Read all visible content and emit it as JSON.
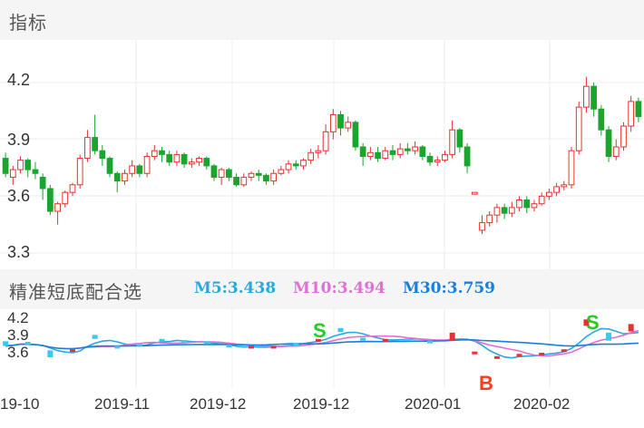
{
  "main_panel": {
    "title": "指标",
    "y_ticks": [
      "4.2",
      "3.9",
      "3.6",
      "3.3"
    ]
  },
  "indicator_panel": {
    "title": "精准短底配合选",
    "ma": [
      {
        "label": "M5:3.438",
        "color": "#2aa8e0"
      },
      {
        "label": "M10:3.494",
        "color": "#e06fd6"
      },
      {
        "label": "M30:3.759",
        "color": "#1a7fd9"
      }
    ],
    "y_ticks": [
      "4.2",
      "3.9",
      "3.6"
    ],
    "signals": [
      {
        "text": "S",
        "color": "#22cc22"
      },
      {
        "text": "B",
        "color": "#ff3b1f"
      },
      {
        "text": "S",
        "color": "#22cc22"
      }
    ]
  },
  "x_axis": [
    "19-10",
    "2019-11",
    "2019-12",
    "2019-12",
    "2020-01",
    "2020-02"
  ],
  "colors": {
    "up": "#e8312f",
    "down": "#1aa52e"
  },
  "chart_data": {
    "type": "candlestick",
    "y_range": [
      3.2,
      4.35
    ],
    "candles": [
      [
        3.8,
        3.72,
        3.83,
        3.7
      ],
      [
        3.7,
        3.74,
        3.76,
        3.66
      ],
      [
        3.74,
        3.79,
        3.81,
        3.72
      ],
      [
        3.79,
        3.74,
        3.8,
        3.7
      ],
      [
        3.74,
        3.72,
        3.78,
        3.69
      ],
      [
        3.7,
        3.64,
        3.72,
        3.58
      ],
      [
        3.64,
        3.52,
        3.66,
        3.5
      ],
      [
        3.52,
        3.56,
        3.57,
        3.45
      ],
      [
        3.56,
        3.62,
        3.63,
        3.54
      ],
      [
        3.62,
        3.66,
        3.67,
        3.6
      ],
      [
        3.66,
        3.8,
        3.82,
        3.64
      ],
      [
        3.8,
        3.91,
        3.95,
        3.78
      ],
      [
        3.91,
        3.84,
        4.03,
        3.82
      ],
      [
        3.84,
        3.8,
        3.87,
        3.76
      ],
      [
        3.8,
        3.72,
        3.81,
        3.7
      ],
      [
        3.72,
        3.68,
        3.73,
        3.62
      ],
      [
        3.68,
        3.72,
        3.74,
        3.66
      ],
      [
        3.72,
        3.76,
        3.79,
        3.7
      ],
      [
        3.76,
        3.72,
        3.77,
        3.7
      ],
      [
        3.72,
        3.81,
        3.83,
        3.7
      ],
      [
        3.81,
        3.84,
        3.87,
        3.79
      ],
      [
        3.84,
        3.82,
        3.86,
        3.78
      ],
      [
        3.82,
        3.78,
        3.84,
        3.76
      ],
      [
        3.78,
        3.82,
        3.84,
        3.76
      ],
      [
        3.82,
        3.77,
        3.83,
        3.75
      ],
      [
        3.77,
        3.78,
        3.8,
        3.75
      ],
      [
        3.78,
        3.8,
        3.81,
        3.76
      ],
      [
        3.8,
        3.76,
        3.81,
        3.74
      ],
      [
        3.76,
        3.7,
        3.77,
        3.68
      ],
      [
        3.7,
        3.74,
        3.75,
        3.66
      ],
      [
        3.74,
        3.7,
        3.75,
        3.68
      ],
      [
        3.7,
        3.66,
        3.72,
        3.65
      ],
      [
        3.66,
        3.7,
        3.72,
        3.65
      ],
      [
        3.7,
        3.72,
        3.73,
        3.68
      ],
      [
        3.72,
        3.71,
        3.74,
        3.68
      ],
      [
        3.71,
        3.68,
        3.72,
        3.66
      ],
      [
        3.68,
        3.72,
        3.74,
        3.66
      ],
      [
        3.72,
        3.74,
        3.76,
        3.71
      ],
      [
        3.74,
        3.77,
        3.79,
        3.72
      ],
      [
        3.77,
        3.76,
        3.79,
        3.74
      ],
      [
        3.76,
        3.79,
        3.8,
        3.74
      ],
      [
        3.79,
        3.83,
        3.85,
        3.77
      ],
      [
        3.83,
        3.84,
        3.87,
        3.8
      ],
      [
        3.84,
        3.94,
        3.98,
        3.82
      ],
      [
        3.94,
        4.03,
        4.06,
        3.9
      ],
      [
        4.03,
        3.96,
        4.05,
        3.92
      ],
      [
        3.96,
        3.99,
        4.02,
        3.94
      ],
      [
        3.99,
        3.86,
        4.0,
        3.84
      ],
      [
        3.86,
        3.81,
        3.88,
        3.76
      ],
      [
        3.81,
        3.83,
        3.86,
        3.79
      ],
      [
        3.83,
        3.8,
        3.86,
        3.78
      ],
      [
        3.8,
        3.84,
        3.86,
        3.79
      ],
      [
        3.84,
        3.82,
        3.87,
        3.79
      ],
      [
        3.82,
        3.85,
        3.88,
        3.8
      ],
      [
        3.85,
        3.84,
        3.88,
        3.82
      ],
      [
        3.84,
        3.86,
        3.89,
        3.82
      ],
      [
        3.86,
        3.81,
        3.87,
        3.79
      ],
      [
        3.81,
        3.78,
        3.83,
        3.76
      ],
      [
        3.78,
        3.79,
        3.81,
        3.76
      ],
      [
        3.79,
        3.82,
        3.84,
        3.78
      ],
      [
        3.82,
        3.95,
        4.0,
        3.8
      ],
      [
        3.95,
        3.86,
        3.96,
        3.83
      ],
      [
        3.86,
        3.76,
        3.88,
        3.72
      ],
      [
        3.62,
        3.62,
        3.62,
        3.62
      ],
      [
        3.42,
        3.46,
        3.5,
        3.4
      ],
      [
        3.46,
        3.5,
        3.52,
        3.44
      ],
      [
        3.5,
        3.54,
        3.56,
        3.46
      ],
      [
        3.54,
        3.51,
        3.56,
        3.48
      ],
      [
        3.51,
        3.54,
        3.57,
        3.49
      ],
      [
        3.54,
        3.58,
        3.6,
        3.52
      ],
      [
        3.58,
        3.54,
        3.6,
        3.51
      ],
      [
        3.54,
        3.56,
        3.58,
        3.52
      ],
      [
        3.56,
        3.6,
        3.62,
        3.55
      ],
      [
        3.6,
        3.62,
        3.64,
        3.58
      ],
      [
        3.62,
        3.65,
        3.67,
        3.6
      ],
      [
        3.65,
        3.66,
        3.68,
        3.63
      ],
      [
        3.66,
        3.84,
        3.86,
        3.64
      ],
      [
        3.84,
        4.07,
        4.1,
        3.82
      ],
      [
        4.07,
        4.18,
        4.23,
        4.04
      ],
      [
        4.18,
        4.06,
        4.2,
        4.02
      ],
      [
        4.06,
        3.95,
        4.08,
        3.92
      ],
      [
        3.95,
        3.81,
        3.97,
        3.78
      ],
      [
        3.81,
        3.86,
        3.9,
        3.79
      ],
      [
        3.86,
        3.97,
        3.99,
        3.84
      ],
      [
        3.97,
        4.1,
        4.13,
        3.94
      ],
      [
        4.1,
        4.02,
        4.12,
        3.99
      ]
    ]
  }
}
